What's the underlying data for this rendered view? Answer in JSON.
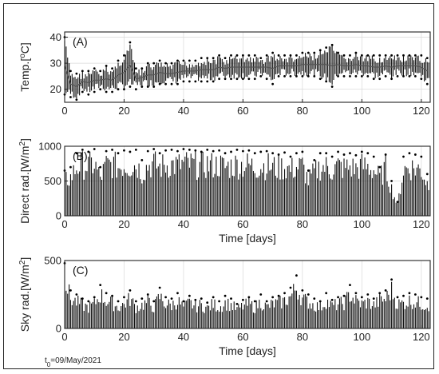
{
  "chart_data": [
    {
      "type": "line",
      "panel_label": "(A)",
      "ylabel_main": "Temp.[",
      "ylabel_unit": "o",
      "ylabel_tail": "C]",
      "xlim": [
        0,
        123
      ],
      "ylim": [
        15,
        42
      ],
      "xticks": [
        "0",
        "20",
        "40",
        "60",
        "80",
        "100",
        "120"
      ],
      "yticks": [
        "20",
        "30",
        "40"
      ],
      "grid": true,
      "series": [
        {
          "x": [
            0,
            2,
            4,
            6,
            8,
            10,
            12,
            14,
            16,
            18,
            20,
            22,
            24,
            26,
            28,
            30,
            32,
            34,
            36,
            38,
            40,
            42,
            44,
            46,
            48,
            50,
            52,
            54,
            56,
            58,
            60,
            62,
            64,
            66,
            68,
            70,
            72,
            74,
            76,
            78,
            80,
            82,
            84,
            86,
            88,
            90,
            92,
            94,
            96,
            98,
            100,
            102,
            104,
            106,
            108,
            110,
            112,
            114,
            116,
            118,
            120,
            122
          ],
          "upper": [
            40,
            27,
            26,
            27,
            27,
            28,
            27,
            29,
            28,
            31,
            33,
            38,
            28,
            28,
            30,
            30,
            31,
            30,
            30,
            31,
            31,
            31,
            31,
            32,
            32,
            32,
            33,
            32,
            33,
            33,
            33,
            33,
            33,
            32,
            33,
            34,
            33,
            33,
            33,
            33,
            34,
            34,
            34,
            35,
            36,
            37,
            34,
            33,
            33,
            34,
            33,
            33,
            33,
            33,
            33,
            33,
            33,
            33,
            33,
            33,
            33,
            32
          ],
          "lower": [
            18,
            17,
            16,
            19,
            18,
            19,
            20,
            19,
            19,
            20,
            20,
            21,
            20,
            21,
            21,
            21,
            22,
            22,
            22,
            22,
            23,
            23,
            23,
            23,
            23,
            23,
            24,
            24,
            24,
            24,
            24,
            24,
            24,
            25,
            24,
            22,
            25,
            25,
            25,
            25,
            25,
            25,
            25,
            24,
            23,
            21,
            25,
            25,
            25,
            25,
            25,
            25,
            24,
            24,
            25,
            24,
            25,
            25,
            25,
            25,
            24,
            22
          ]
        }
      ]
    },
    {
      "type": "line",
      "panel_label": "(B)",
      "ylabel_main": "Direct rad.[W/m",
      "ylabel_unit": "2",
      "ylabel_tail": "]",
      "xlabel": "Time [days]",
      "xlim": [
        0,
        123
      ],
      "ylim": [
        0,
        1000
      ],
      "xticks": [
        "0",
        "20",
        "40",
        "60",
        "80",
        "100",
        "120"
      ],
      "yticks": [
        "0",
        "500",
        "1000"
      ],
      "grid": true,
      "series": [
        {
          "x": [
            0,
            2,
            4,
            6,
            8,
            10,
            12,
            14,
            16,
            18,
            20,
            22,
            24,
            26,
            28,
            30,
            32,
            34,
            36,
            38,
            40,
            42,
            44,
            46,
            48,
            50,
            52,
            54,
            56,
            58,
            60,
            62,
            64,
            66,
            68,
            70,
            72,
            74,
            76,
            78,
            80,
            82,
            84,
            86,
            88,
            90,
            92,
            94,
            96,
            98,
            100,
            102,
            104,
            106,
            108,
            110,
            112,
            114,
            116,
            118,
            120,
            122
          ],
          "peak": [
            650,
            700,
            900,
            950,
            920,
            960,
            700,
            930,
            950,
            900,
            940,
            920,
            950,
            800,
            930,
            960,
            900,
            940,
            950,
            930,
            960,
            950,
            940,
            920,
            950,
            930,
            940,
            900,
            920,
            950,
            930,
            940,
            900,
            920,
            930,
            900,
            880,
            910,
            850,
            900,
            920,
            650,
            800,
            900,
            900,
            850,
            920,
            880,
            900,
            870,
            920,
            900,
            850,
            700,
            880,
            500,
            200,
            850,
            900,
            880,
            850,
            600
          ]
        }
      ]
    },
    {
      "type": "line",
      "panel_label": "(C)",
      "ylabel_main": "Sky rad.[W/m",
      "ylabel_unit": "2",
      "ylabel_tail": "]",
      "xlabel": "Time [days]",
      "xlim": [
        0,
        123
      ],
      "ylim": [
        0,
        500
      ],
      "xticks": [
        "0",
        "20",
        "40",
        "60",
        "80",
        "100",
        "120"
      ],
      "yticks": [
        "0",
        "500"
      ],
      "grid": true,
      "series": [
        {
          "x": [
            0,
            2,
            4,
            6,
            8,
            10,
            12,
            14,
            16,
            18,
            20,
            22,
            24,
            26,
            28,
            30,
            32,
            34,
            36,
            38,
            40,
            42,
            44,
            46,
            48,
            50,
            52,
            54,
            56,
            58,
            60,
            62,
            64,
            66,
            68,
            70,
            72,
            74,
            76,
            78,
            80,
            82,
            84,
            86,
            88,
            90,
            92,
            94,
            96,
            98,
            100,
            102,
            104,
            106,
            108,
            110,
            112,
            114,
            116,
            118,
            120,
            122
          ],
          "peak": [
            480,
            280,
            250,
            220,
            200,
            230,
            320,
            260,
            240,
            200,
            230,
            280,
            200,
            220,
            250,
            200,
            300,
            230,
            220,
            260,
            200,
            240,
            210,
            220,
            190,
            230,
            200,
            240,
            220,
            180,
            210,
            230,
            200,
            250,
            200,
            230,
            240,
            260,
            300,
            390,
            280,
            250,
            220,
            200,
            260,
            210,
            230,
            240,
            320,
            260,
            230,
            250,
            220,
            260,
            280,
            360,
            230,
            240,
            260,
            250,
            230,
            220
          ]
        }
      ]
    }
  ],
  "footnote": {
    "prefix": "t",
    "subscript": "0",
    "value": "=09/May/2021"
  }
}
